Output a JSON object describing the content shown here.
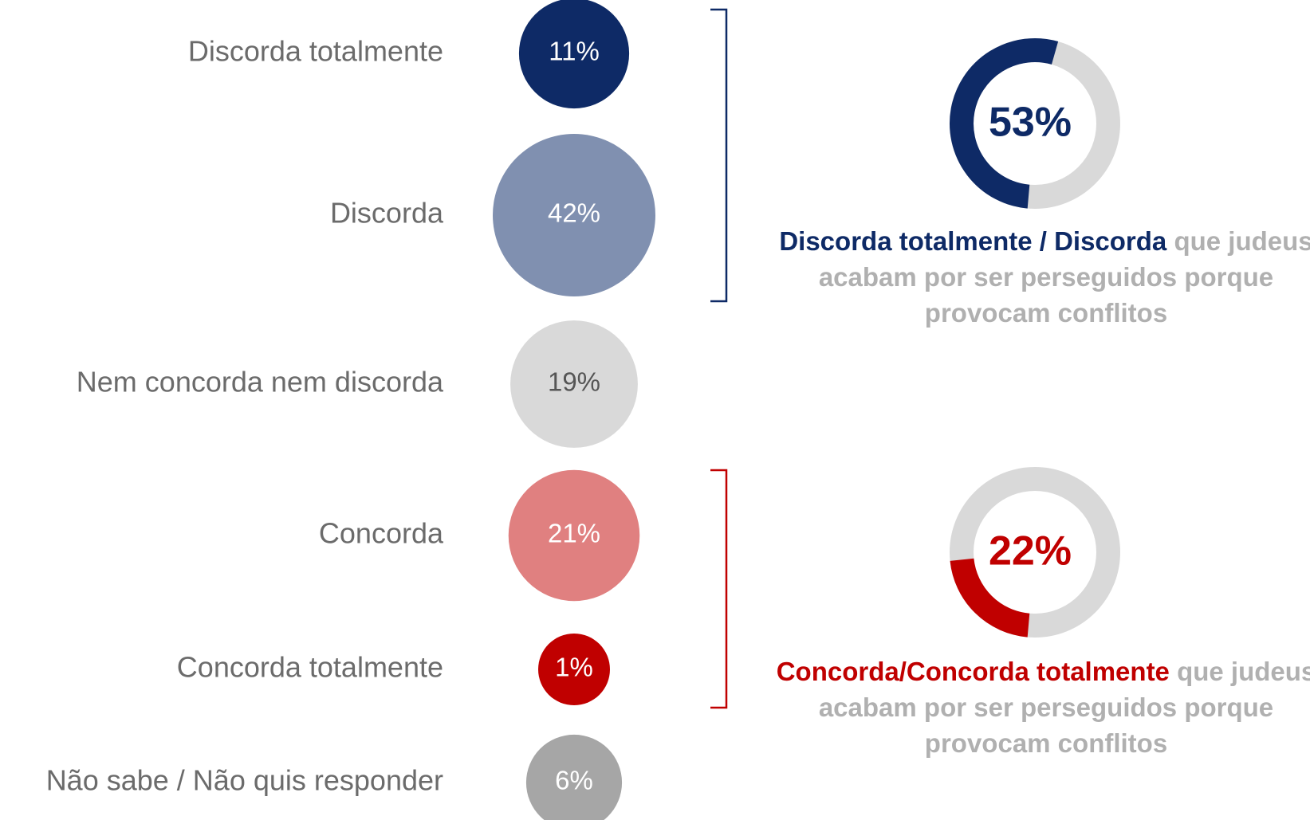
{
  "chart_data": [
    {
      "type": "bubble",
      "categories": [
        "Discorda totalmente",
        "Discorda",
        "Nem concorda nem discorda",
        "Concorda",
        "Concorda totalmente",
        "Não sabe / Não quis responder"
      ],
      "values": [
        11,
        42,
        19,
        21,
        1,
        6
      ],
      "value_labels": [
        "11%",
        "42%",
        "19%",
        "21%",
        "1%",
        "6%"
      ],
      "colors": [
        "#0e2a66",
        "#8090b0",
        "#d9d9d9",
        "#e08080",
        "#c00000",
        "#a6a6a6"
      ]
    },
    {
      "type": "donut",
      "values": [
        53
      ],
      "value_labels": [
        "53%"
      ],
      "color": "#0e2a66",
      "highlight": "Discorda totalmente / Discorda",
      "text": "que judeus acabam por ser perseguidos porque provocam conflitos"
    },
    {
      "type": "donut",
      "values": [
        22
      ],
      "value_labels": [
        "22%"
      ],
      "color": "#c00000",
      "highlight": "Concorda/Concorda totalmente",
      "text": "que judeus acabam por ser perseguidos porque provocam conflitos"
    }
  ]
}
